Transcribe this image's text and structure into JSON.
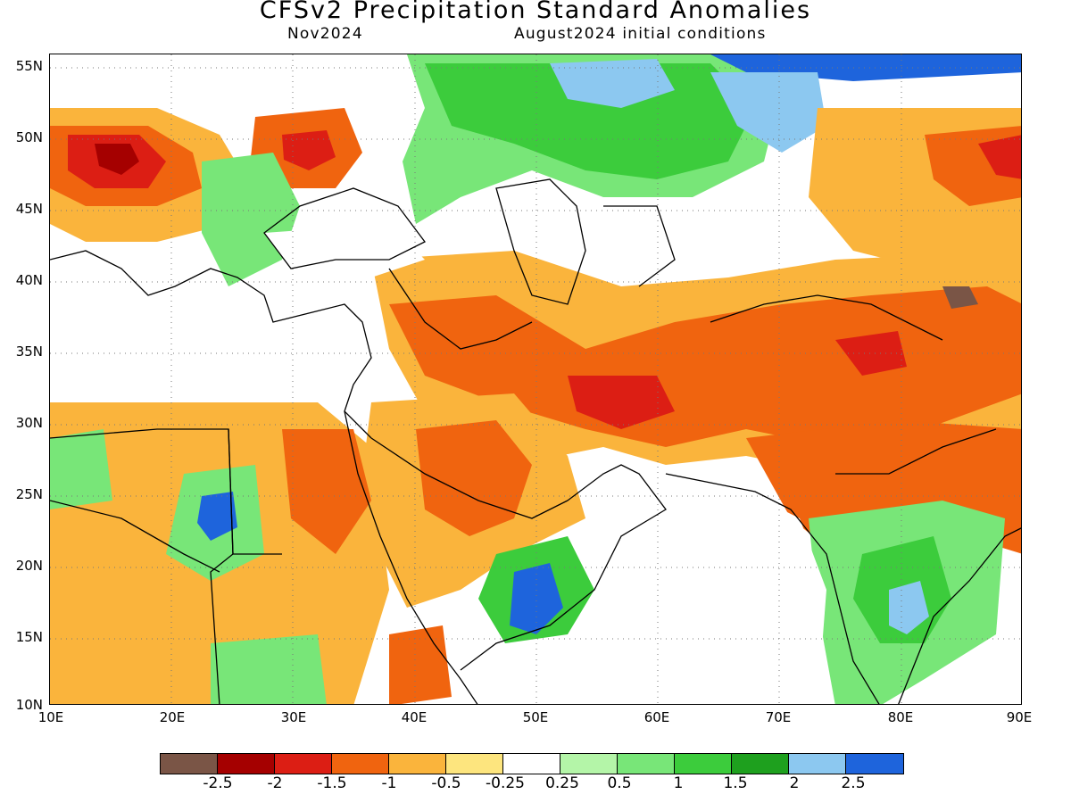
{
  "title": "CFSv2 Precipitation Standard Anomalies",
  "target_month": "Nov2024",
  "initial_conditions": "August2024 initial conditions",
  "lat_labels": [
    "55N",
    "50N",
    "45N",
    "40N",
    "35N",
    "30N",
    "25N",
    "20N",
    "15N",
    "10N"
  ],
  "lon_labels": [
    "10E",
    "20E",
    "30E",
    "40E",
    "50E",
    "60E",
    "70E",
    "80E",
    "90E"
  ],
  "colorbar": {
    "colors": [
      "#7a5546",
      "#a50000",
      "#dc1e14",
      "#f0640f",
      "#fab43c",
      "#fde57e",
      "#ffffff",
      "#b4f5a8",
      "#78e678",
      "#3ccc3c",
      "#1ea01e",
      "#8cc8f0",
      "#1e64dc"
    ],
    "labels": [
      "-2.5",
      "-2",
      "-1.5",
      "-1",
      "-0.5",
      "-0.25",
      "0.25",
      "0.5",
      "1",
      "1.5",
      "2",
      "2.5"
    ]
  },
  "legend_scale": {
    "dry_strong": "#a50000",
    "dry": "#f0640f",
    "dry_weak": "#fab43c",
    "near_normal": "#ffffff",
    "wet_weak": "#78e678",
    "wet": "#1ea01e",
    "wet_strong": "#1e64dc"
  }
}
